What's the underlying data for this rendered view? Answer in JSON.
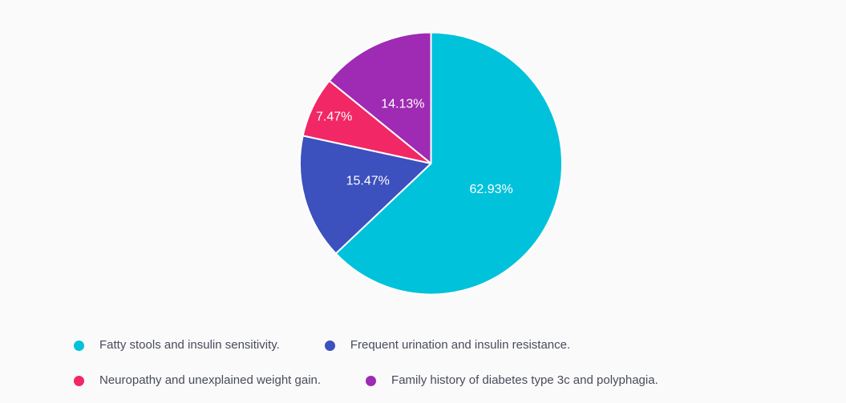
{
  "page": {
    "background_color": "#FAFAFA"
  },
  "chart_data": {
    "type": "pie",
    "title": "",
    "direction": "clockwise",
    "start_angle_deg": 0,
    "legend_position": "bottom",
    "slice_border_color": "#FFFFFF",
    "label_color": "#FFFFFF",
    "slices": [
      {
        "label": "Fatty stools and insulin sensitivity.",
        "value": 62.93,
        "display": "62.93%",
        "color": "#00C2DB"
      },
      {
        "label": "Frequent urination and insulin resistance.",
        "value": 15.47,
        "display": "15.47%",
        "color": "#3C50BE"
      },
      {
        "label": "Neuropathy and unexplained weight gain.",
        "value": 7.47,
        "display": "7.47%",
        "color": "#F22765"
      },
      {
        "label": "Family history of diabetes type 3c and polyphagia.",
        "value": 14.13,
        "display": "14.13%",
        "color": "#9F2AB3"
      }
    ]
  }
}
